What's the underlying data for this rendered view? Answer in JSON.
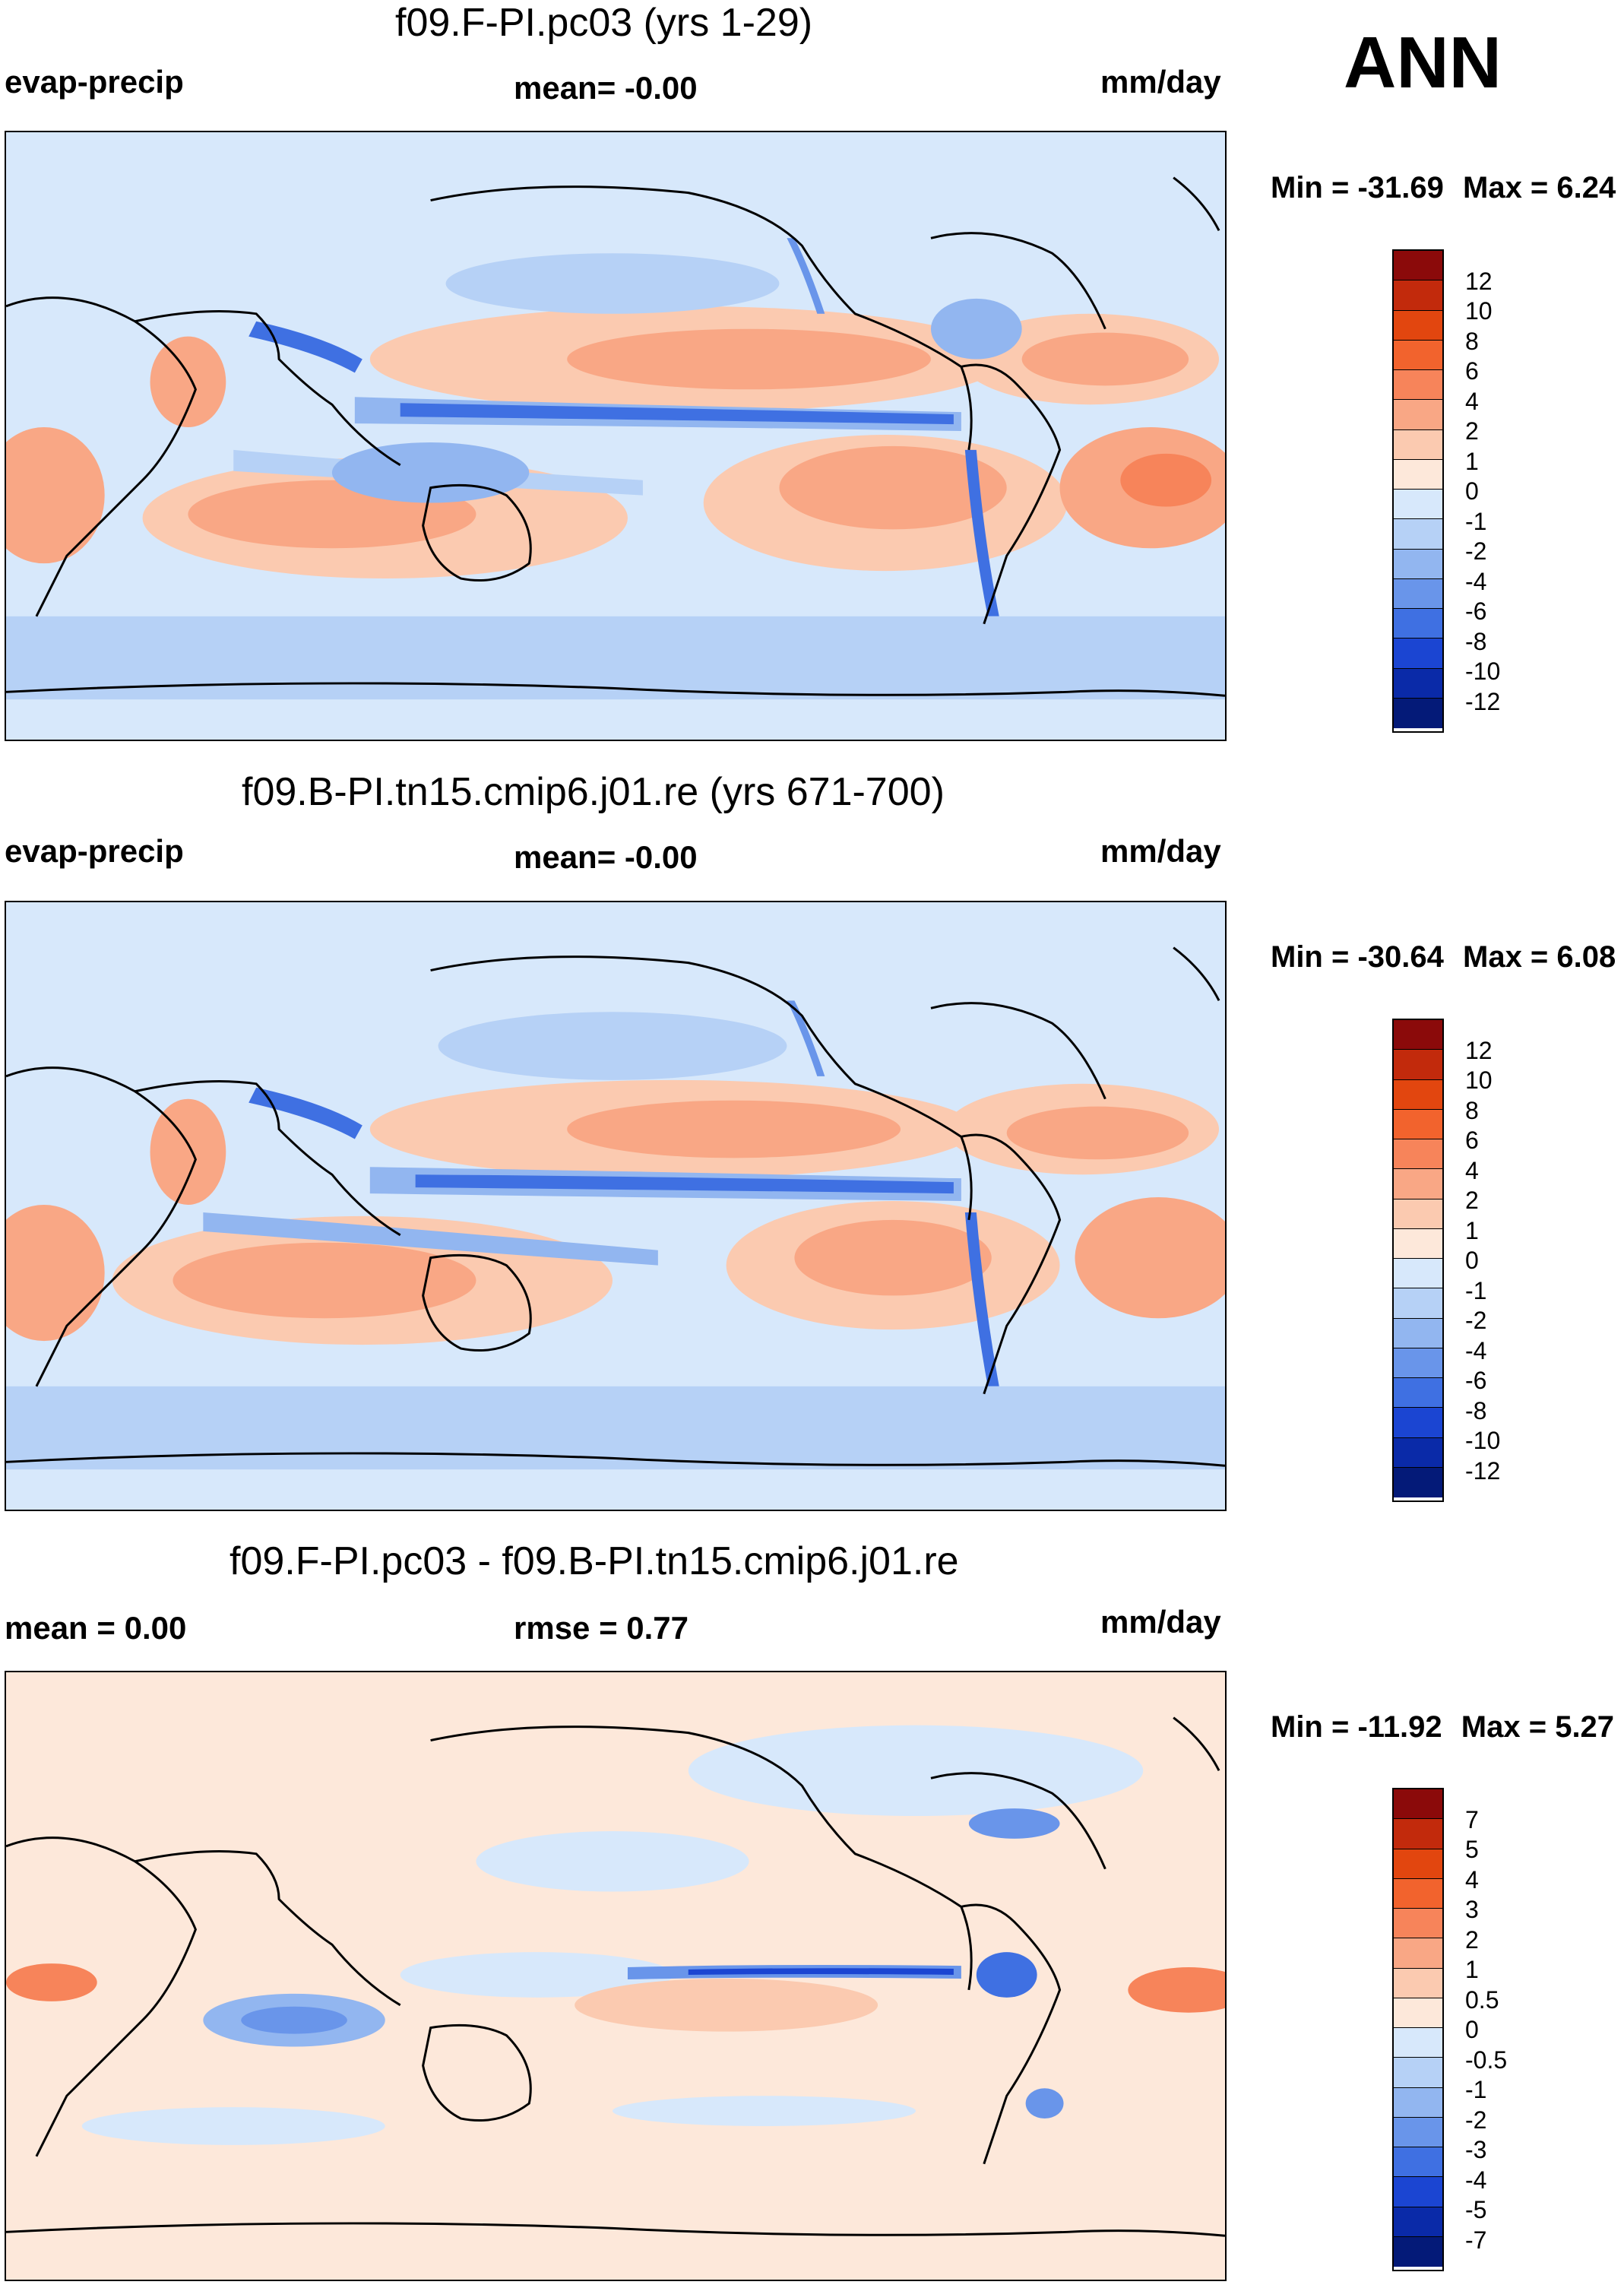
{
  "season": "ANN",
  "panels": [
    {
      "title": "f09.F-PI.pc03 (yrs 1-29)",
      "left_label": "evap-precip",
      "center_label": "mean=  -0.00",
      "units": "mm/day",
      "min_label": "Min = -31.69",
      "max_label": "Max =   6.24",
      "levels": [
        "12",
        "10",
        "8",
        "6",
        "4",
        "2",
        "1",
        "0",
        "-1",
        "-2",
        "-4",
        "-6",
        "-8",
        "-10",
        "-12"
      ],
      "colors": [
        "#8b0a0a",
        "#c22a0c",
        "#e2460f",
        "#f2632d",
        "#f7845a",
        "#f9a785",
        "#fbcab0",
        "#fde8da",
        "#d7e8fb",
        "#b6d1f6",
        "#92b6f0",
        "#6995ea",
        "#3f70e2",
        "#1b45d2",
        "#0a2aa8",
        "#041a78"
      ]
    },
    {
      "title": "f09.B-PI.tn15.cmip6.j01.re (yrs 671-700)",
      "left_label": "evap-precip",
      "center_label": "mean=  -0.00",
      "units": "mm/day",
      "min_label": "Min = -30.64",
      "max_label": "Max =   6.08",
      "levels": [
        "12",
        "10",
        "8",
        "6",
        "4",
        "2",
        "1",
        "0",
        "-1",
        "-2",
        "-4",
        "-6",
        "-8",
        "-10",
        "-12"
      ],
      "colors": [
        "#8b0a0a",
        "#c22a0c",
        "#e2460f",
        "#f2632d",
        "#f7845a",
        "#f9a785",
        "#fbcab0",
        "#fde8da",
        "#d7e8fb",
        "#b6d1f6",
        "#92b6f0",
        "#6995ea",
        "#3f70e2",
        "#1b45d2",
        "#0a2aa8",
        "#041a78"
      ]
    },
    {
      "title": "f09.F-PI.pc03 - f09.B-PI.tn15.cmip6.j01.re",
      "left_label": "mean =   0.00",
      "center_label": "rmse =   0.77",
      "units": "mm/day",
      "min_label": "Min = -11.92",
      "max_label": "Max =   5.27",
      "levels": [
        "7",
        "5",
        "4",
        "3",
        "2",
        "1",
        "0.5",
        "0",
        "-0.5",
        "-1",
        "-2",
        "-3",
        "-4",
        "-5",
        "-7"
      ],
      "colors": [
        "#8b0a0a",
        "#c22a0c",
        "#e2460f",
        "#f2632d",
        "#f7845a",
        "#f9a785",
        "#fbcab0",
        "#fde8da",
        "#d7e8fb",
        "#b6d1f6",
        "#92b6f0",
        "#6995ea",
        "#3f70e2",
        "#1b45d2",
        "#0a2aa8",
        "#041a78"
      ]
    }
  ]
}
